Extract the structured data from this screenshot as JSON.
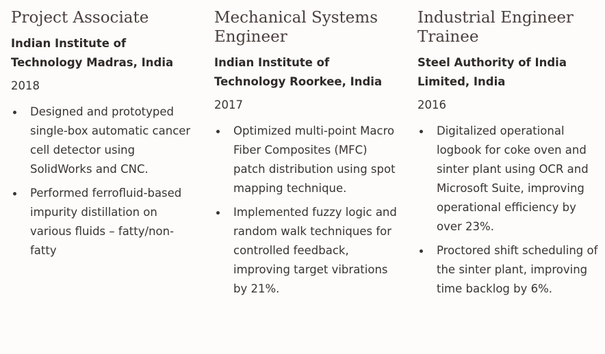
{
  "experience": [
    {
      "role": "Project Associate",
      "organization": "Indian Institute of Technology Madras, India",
      "year": "2018",
      "bullets": [
        "Designed and prototyped single-box automatic cancer cell detector using SolidWorks and CNC.",
        "Performed ferrofluid-based impurity distillation on various fluids – fatty/non-fatty"
      ]
    },
    {
      "role": "Mechanical Systems Engineer",
      "organization": "Indian Institute of Technology Roorkee, India",
      "year": "2017",
      "bullets": [
        "Optimized multi-point Macro Fiber Composites (MFC) patch distribution using spot mapping technique.",
        "Implemented fuzzy logic and random walk techniques for controlled feedback, improving target vibrations by 21%."
      ]
    },
    {
      "role": "Industrial Engineer Trainee",
      "organization": "Steel Authority of India Limited, India",
      "year": "2016",
      "bullets": [
        "Digitalized operational logbook for coke oven and sinter plant using OCR and Microsoft Suite, improving operational efficiency by over 23%.",
        "Proctored shift scheduling of the sinter plant, improving time backlog by 6%."
      ]
    }
  ]
}
